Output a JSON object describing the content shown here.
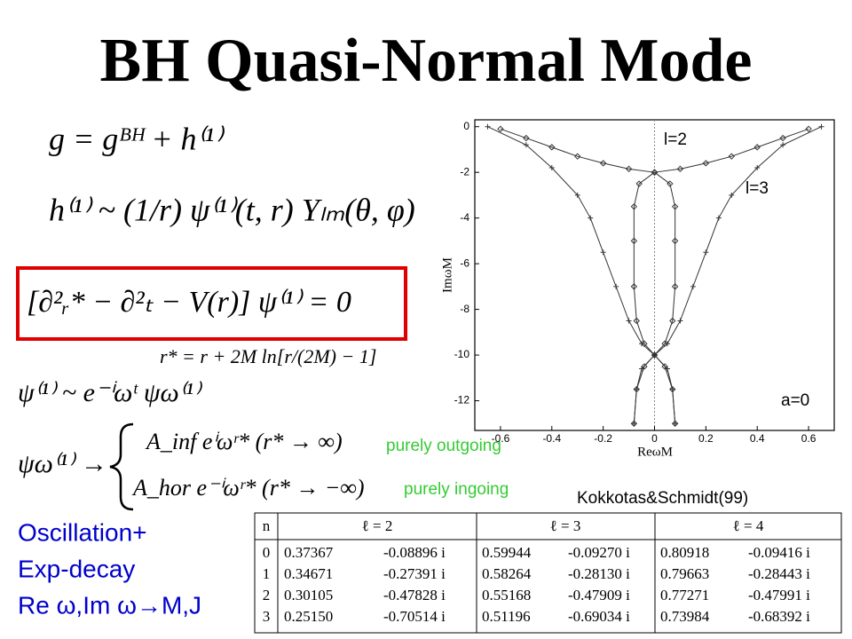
{
  "title": "BH Quasi-Normal Mode",
  "equations": {
    "metric": "g = gᴮᴴ + h⁽¹⁾",
    "perturbation": "h⁽¹⁾ ~ (1/r) ψ⁽¹⁾(t, r) Yₗₘ(θ, φ)",
    "wave_equation": "[∂²ᵣ* − ∂²ₜ − V(r)] ψ⁽¹⁾ = 0",
    "tortoise": "r* = r + 2M ln[r/(2M) − 1]",
    "fourier": "ψ⁽¹⁾ ~ e⁻ⁱωᵗ ψω⁽¹⁾",
    "boundary_lhs": "ψω⁽¹⁾ →",
    "boundary_inf": "A_inf eⁱωʳ* (r* → ∞)",
    "boundary_hor": "A_hor e⁻ⁱωʳ* (r* → −∞)"
  },
  "annotations": {
    "outgoing": "purely outgoing",
    "ingoing": "purely ingoing",
    "source": "Kokkotas&Schmidt(99)"
  },
  "summary": [
    "Oscillation+",
    "Exp-decay",
    "Re ω,Im ω→M,J"
  ],
  "chart_data": {
    "type": "line",
    "x_label": "ReωM",
    "y_label": "ImωM",
    "labels": [
      "l=2",
      "l=3",
      "a=0"
    ],
    "xlim": [
      -0.7,
      0.7
    ],
    "ylim": [
      -13.3,
      0.3
    ],
    "xticks": [
      -0.6,
      -0.4,
      -0.2,
      0,
      0.2,
      0.4,
      0.6
    ],
    "yticks": [
      0,
      -2,
      -4,
      -6,
      -8,
      -10,
      -12
    ],
    "series": [
      {
        "color": "#333333",
        "marker": "diamond",
        "x": [
          -0.6,
          -0.5,
          -0.4,
          -0.3,
          -0.2,
          -0.1,
          0
        ],
        "values": [
          -0.1,
          -0.5,
          -0.9,
          -1.3,
          -1.6,
          -1.85,
          -2.0
        ]
      },
      {
        "color": "#333333",
        "marker": "diamond",
        "x": [
          0.6,
          0.5,
          0.4,
          0.3,
          0.2,
          0.1,
          0
        ],
        "values": [
          -0.1,
          -0.5,
          -0.9,
          -1.3,
          -1.6,
          -1.85,
          -2.0
        ]
      },
      {
        "color": "#333333",
        "marker": "diamond",
        "x": [
          0,
          -0.06,
          -0.08,
          -0.08,
          -0.08,
          -0.07,
          -0.04,
          0,
          0.04,
          0.07,
          0.08
        ],
        "values": [
          -2,
          -2.5,
          -3.5,
          -5,
          -7,
          -8.5,
          -9.5,
          -10,
          -10.5,
          -11.5,
          -13
        ]
      },
      {
        "color": "#333333",
        "marker": "diamond",
        "x": [
          0,
          0.06,
          0.08,
          0.08,
          0.08,
          0.07,
          0.04,
          0,
          -0.04,
          -0.07,
          -0.08
        ],
        "values": [
          -2,
          -2.5,
          -3.5,
          -5,
          -7,
          -8.5,
          -9.5,
          -10,
          -10.5,
          -11.5,
          -13
        ]
      },
      {
        "color": "#333333",
        "marker": "plus",
        "x": [
          -0.65,
          -0.5,
          -0.4,
          -0.3,
          -0.25,
          -0.2,
          -0.15,
          -0.1,
          -0.05,
          0,
          0.05,
          0.07,
          0.08
        ],
        "values": [
          0,
          -0.8,
          -1.8,
          -3,
          -4,
          -5.5,
          -7,
          -8.5,
          -9.5,
          -10,
          -10.6,
          -11.5,
          -13
        ]
      },
      {
        "color": "#333333",
        "marker": "plus",
        "x": [
          0.65,
          0.5,
          0.4,
          0.3,
          0.25,
          0.2,
          0.15,
          0.1,
          0.05,
          0,
          -0.05,
          -0.07,
          -0.08
        ],
        "values": [
          0,
          -0.8,
          -1.8,
          -3,
          -4,
          -5.5,
          -7,
          -8.5,
          -9.5,
          -10,
          -10.6,
          -11.5,
          -13
        ]
      }
    ]
  },
  "table": {
    "header": [
      "n",
      "ℓ = 2",
      "ℓ = 3",
      "ℓ = 4"
    ],
    "rows": [
      [
        "0",
        "0.37367",
        "-0.08896 i",
        "0.59944",
        "-0.09270 i",
        "0.80918",
        "-0.09416 i"
      ],
      [
        "1",
        "0.34671",
        "-0.27391 i",
        "0.58264",
        "-0.28130 i",
        "0.79663",
        "-0.28443 i"
      ],
      [
        "2",
        "0.30105",
        "-0.47828 i",
        "0.55168",
        "-0.47909 i",
        "0.77271",
        "-0.47991 i"
      ],
      [
        "3",
        "0.25150",
        "-0.70514 i",
        "0.51196",
        "-0.69034 i",
        "0.73984",
        "-0.68392 i"
      ]
    ]
  }
}
